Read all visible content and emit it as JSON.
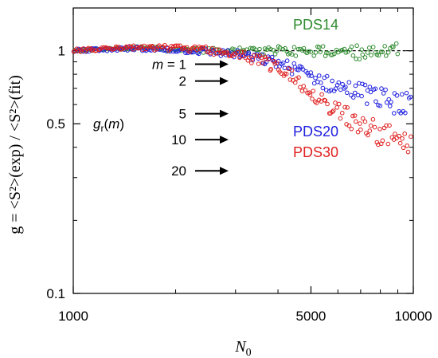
{
  "chart_data": {
    "type": "scatter",
    "title": "",
    "xlabel": {
      "base": "N",
      "sub": "0"
    },
    "ylabel": {
      "text": "g = <S²>(exp) / <S²>(fit)"
    },
    "xscale": "log",
    "yscale": "log",
    "xlim": [
      1000,
      10000
    ],
    "ylim": [
      0.1,
      1.5
    ],
    "xticks": [
      1000,
      5000,
      10000
    ],
    "xtick_labels": [
      "1000",
      "5000",
      "10000"
    ],
    "yticks": [
      0.1,
      0.5,
      1
    ],
    "ytick_labels": [
      "0.1",
      "0.5",
      "1"
    ],
    "reference_line": {
      "y": 1,
      "x_from": 3000,
      "x_to": 10000,
      "style": "dashed"
    },
    "series": [
      {
        "name": "PDS14",
        "color": "#2e8b2e",
        "trend": {
          "x": [
            1000,
            1500,
            2500,
            4000,
            6000,
            9000
          ],
          "y": [
            1.0,
            1.03,
            1.0,
            1.0,
            0.99,
            1.0
          ]
        },
        "x_range": [
          1000,
          9000
        ],
        "spread": 0.045,
        "points": 170
      },
      {
        "name": "PDS20",
        "color": "#2020e0",
        "trend": {
          "x": [
            1000,
            1500,
            2000,
            2500,
            3000,
            3500,
            4000,
            4500,
            5000,
            5500,
            6000,
            7000,
            8000,
            9500
          ],
          "y": [
            1.0,
            1.02,
            1.01,
            0.99,
            0.97,
            0.93,
            0.89,
            0.84,
            0.79,
            0.74,
            0.71,
            0.68,
            0.64,
            0.6
          ]
        },
        "x_range": [
          1000,
          9800
        ],
        "spread": 0.06,
        "points": 200
      },
      {
        "name": "PDS30",
        "color": "#e02020",
        "trend": {
          "x": [
            1000,
            1500,
            2000,
            2500,
            3000,
            3500,
            4000,
            4500,
            5000,
            5500,
            6000,
            7000,
            8000,
            9500
          ],
          "y": [
            1.0,
            1.03,
            1.03,
            1.01,
            0.97,
            0.92,
            0.85,
            0.77,
            0.69,
            0.62,
            0.57,
            0.5,
            0.45,
            0.42
          ]
        },
        "x_range": [
          1000,
          9800
        ],
        "spread": 0.07,
        "points": 200
      }
    ],
    "legend": [
      {
        "label": "PDS14",
        "color": "#2e8b2e",
        "position": "top-right"
      },
      {
        "label": "PDS20",
        "color": "#2020e0",
        "position": "right"
      },
      {
        "label": "PDS30",
        "color": "#e02020",
        "position": "right"
      }
    ],
    "annotations": {
      "arrows_label_prefix": "m = ",
      "arrows": [
        {
          "label": "1",
          "y": 0.88
        },
        {
          "label": "2",
          "y": 0.75
        },
        {
          "label": "5",
          "y": 0.55
        },
        {
          "label": "10",
          "y": 0.43
        },
        {
          "label": "20",
          "y": 0.32
        }
      ],
      "gr_label": {
        "base": "g",
        "sub": "r",
        "suffix": "(m)"
      }
    }
  }
}
